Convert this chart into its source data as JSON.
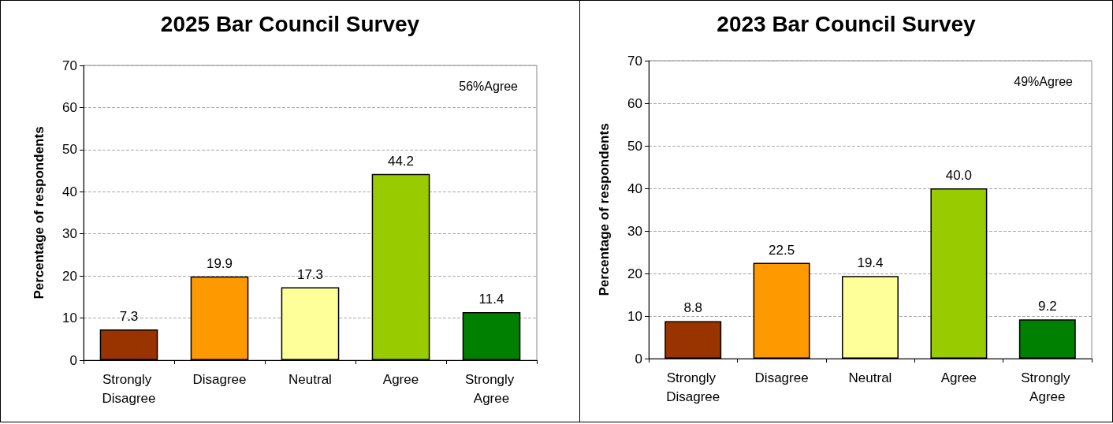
{
  "chart_data": [
    {
      "type": "bar",
      "title": "2025 Bar Council Survey",
      "ylabel": "Percentage of respondents",
      "categories": [
        "Strongly Disagree",
        "Disagree",
        "Neutral",
        "Agree",
        "Strongly Agree"
      ],
      "values": [
        7.3,
        19.9,
        17.3,
        44.2,
        11.4
      ],
      "colors": [
        "#993300",
        "#ff9900",
        "#ffff99",
        "#99cc00",
        "#008000"
      ],
      "value_labels": [
        "7.3",
        "19.9",
        "17.3",
        "44.2",
        "11.4"
      ],
      "ylim": [
        0,
        70
      ],
      "yticks": [
        0,
        10,
        20,
        30,
        40,
        50,
        60,
        70
      ],
      "grid": "y",
      "annotations": [
        "56%Agree"
      ]
    },
    {
      "type": "bar",
      "title": "2023 Bar Council Survey",
      "ylabel": "Percentage of respondents",
      "categories": [
        "Strongly Disagree",
        "Disagree",
        "Neutral",
        "Agree",
        "Strongly Agree"
      ],
      "values": [
        8.8,
        22.5,
        19.4,
        40.0,
        9.2
      ],
      "colors": [
        "#993300",
        "#ff9900",
        "#ffff99",
        "#99cc00",
        "#008000"
      ],
      "value_labels": [
        "8.8",
        "22.5",
        "19.4",
        "40.0",
        "9.2"
      ],
      "ylim": [
        0,
        70
      ],
      "yticks": [
        0,
        10,
        20,
        30,
        40,
        50,
        60,
        70
      ],
      "grid": "y",
      "annotations": [
        "49%Agree"
      ]
    }
  ]
}
